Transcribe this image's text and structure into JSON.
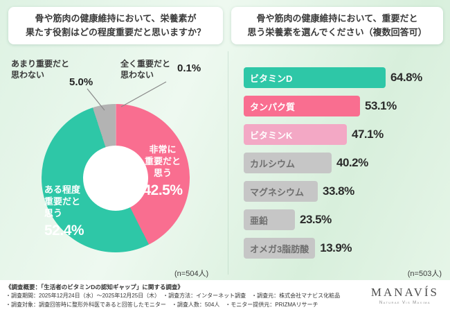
{
  "accent_colors": {
    "teal": "#2ec7a7",
    "pink": "#f96e90",
    "light_pink": "#f3a8c5",
    "gray": "#c6c6c6"
  },
  "left_header": "骨や筋肉の健康維持において、栄養素が\n果たす役割はどの程度重要だと思いますか？",
  "right_header": "骨や筋肉の健康維持において、重要だと\n思う栄養素を選んでください（複数回答可）",
  "chart_data": [
    {
      "type": "pie",
      "question": "骨や筋肉の健康維持において、栄養素が果たす役割はどの程度重要だと思いますか？",
      "n_label": "(n=504人)",
      "slices": [
        {
          "label": "全く重要だと思わない",
          "label_lines": "全く重要だと\n思わない",
          "value": 0.1,
          "pct_display": "0.1%",
          "color": "#d8d8d8"
        },
        {
          "label": "非常に重要だと思う",
          "label_lines": "非常に\n重要だと\n思う",
          "value": 42.5,
          "pct_display": "42.5%",
          "color": "#f96e90"
        },
        {
          "label": "ある程度重要だと思う",
          "label_lines": "ある程度\n重要だと\n思う",
          "value": 52.4,
          "pct_display": "52.4%",
          "color": "#2ec7a7"
        },
        {
          "label": "あまり重要だと思わない",
          "label_lines": "あまり重要だと\n思わない",
          "value": 5.0,
          "pct_display": "5.0%",
          "color": "#b3b3b3"
        }
      ]
    },
    {
      "type": "bar",
      "question": "骨や筋肉の健康維持において、重要だと思う栄養素を選んでください（複数回答可）",
      "n_label": "(n=503人)",
      "categories": [
        "ビタミンD",
        "タンパク質",
        "ビタミンK",
        "カルシウム",
        "マグネシウム",
        "亜鉛",
        "オメガ3脂肪酸"
      ],
      "values": [
        64.8,
        53.1,
        47.1,
        40.2,
        33.8,
        23.5,
        13.9
      ],
      "value_displays": [
        "64.8%",
        "53.1%",
        "47.1%",
        "40.2%",
        "33.8%",
        "23.5%",
        "13.9%"
      ],
      "bar_colors": [
        "#2ec7a7",
        "#f96e90",
        "#f3a8c5",
        "#c6c6c6",
        "#c6c6c6",
        "#c6c6c6",
        "#c6c6c6"
      ],
      "label_colors": [
        "#ffffff",
        "#ffffff",
        "#ffffff",
        "#6e6e6e",
        "#6e6e6e",
        "#6e6e6e",
        "#6e6e6e"
      ],
      "xlim": [
        0,
        70
      ],
      "legend": "none",
      "grid": false
    }
  ],
  "footer": {
    "title": "《調査概要：「生活者のビタミンDの認知ギャップ」に関する調査》",
    "line1": "・調査期間：2025年12月24日（水）～2025年12月25日（木）　・調査方法：インターネット調査　・調査元：株式会社マナビス化粧品",
    "line2": "・調査対象：調査回答時に整形外科医であると回答したモニター　・調査人数：504人　・モニター提供元：PRIZMAリサーチ",
    "logo": "MANAVÍS",
    "logo_tagline": "Naturae Vis Maxima"
  }
}
